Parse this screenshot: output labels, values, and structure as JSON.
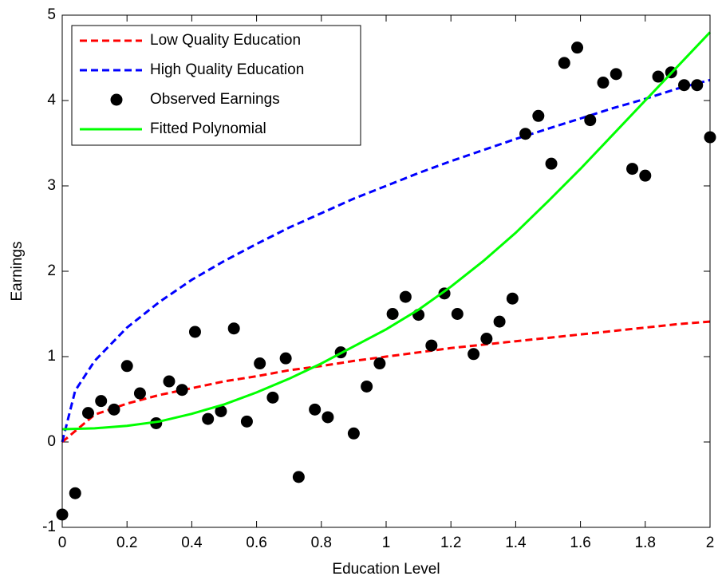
{
  "chart_data": {
    "type": "line",
    "x_label": "Education Level",
    "y_label": "Earnings",
    "xlim": [
      0,
      2
    ],
    "ylim": [
      -1,
      5
    ],
    "xticks": [
      0,
      0.2,
      0.4,
      0.6,
      0.8,
      1,
      1.2,
      1.4,
      1.6,
      1.8,
      2
    ],
    "yticks": [
      -1,
      0,
      1,
      2,
      3,
      4,
      5
    ],
    "grid": false,
    "legend": "upper-left",
    "series": [
      {
        "name": "Low Quality Education",
        "type": "line",
        "line_style": "dashed",
        "color": "#ff0000",
        "x": [
          0,
          0.1,
          0.2,
          0.3,
          0.4,
          0.5,
          0.6,
          0.7,
          0.8,
          0.9,
          1,
          1.1,
          1.2,
          1.3,
          1.4,
          1.5,
          1.6,
          1.7,
          1.8,
          1.9,
          2
        ],
        "values": [
          0,
          0.32,
          0.45,
          0.55,
          0.63,
          0.71,
          0.77,
          0.84,
          0.89,
          0.95,
          1,
          1.05,
          1.1,
          1.14,
          1.18,
          1.22,
          1.26,
          1.3,
          1.34,
          1.38,
          1.41
        ]
      },
      {
        "name": "High Quality Education",
        "type": "line",
        "line_style": "dashed",
        "color": "#0000ff",
        "x": [
          0,
          0.04,
          0.1,
          0.2,
          0.3,
          0.4,
          0.5,
          0.6,
          0.7,
          0.8,
          0.9,
          1,
          1.1,
          1.2,
          1.3,
          1.4,
          1.5,
          1.6,
          1.7,
          1.8,
          1.9,
          2
        ],
        "values": [
          0,
          0.6,
          0.95,
          1.34,
          1.64,
          1.9,
          2.12,
          2.32,
          2.51,
          2.68,
          2.85,
          3,
          3.15,
          3.29,
          3.42,
          3.55,
          3.67,
          3.79,
          3.91,
          4.02,
          4.14,
          4.24
        ]
      },
      {
        "name": "Observed Earnings",
        "type": "scatter",
        "color": "#000000",
        "x": [
          0,
          0.04,
          0.08,
          0.12,
          0.16,
          0.2,
          0.24,
          0.29,
          0.33,
          0.37,
          0.41,
          0.45,
          0.49,
          0.53,
          0.57,
          0.61,
          0.65,
          0.69,
          0.73,
          0.78,
          0.82,
          0.86,
          0.9,
          0.94,
          0.98,
          1.02,
          1.06,
          1.1,
          1.14,
          1.18,
          1.22,
          1.27,
          1.31,
          1.35,
          1.39,
          1.43,
          1.47,
          1.51,
          1.55,
          1.59,
          1.63,
          1.67,
          1.71,
          1.76,
          1.8,
          1.84,
          1.88,
          1.92,
          1.96,
          2
        ],
        "values": [
          -0.85,
          -0.6,
          0.34,
          0.48,
          0.38,
          0.89,
          0.57,
          0.22,
          0.71,
          0.61,
          1.29,
          0.27,
          0.36,
          1.33,
          0.24,
          0.92,
          0.52,
          0.98,
          -0.41,
          0.38,
          0.29,
          1.05,
          0.1,
          0.65,
          0.92,
          1.5,
          1.7,
          1.49,
          1.13,
          1.74,
          1.5,
          1.03,
          1.21,
          1.41,
          1.68,
          3.61,
          3.82,
          3.26,
          4.44,
          4.62,
          3.77,
          4.21,
          4.31,
          3.2,
          3.12,
          4.28,
          4.33,
          4.18,
          4.18,
          3.57
        ]
      },
      {
        "name": "Fitted Polynomial",
        "type": "line",
        "line_style": "solid",
        "color": "#00ff00",
        "x": [
          0,
          0.1,
          0.2,
          0.3,
          0.4,
          0.5,
          0.6,
          0.7,
          0.8,
          0.9,
          1,
          1.1,
          1.2,
          1.3,
          1.4,
          1.5,
          1.6,
          1.7,
          1.8,
          1.9,
          2
        ],
        "values": [
          0.15,
          0.16,
          0.19,
          0.24,
          0.33,
          0.44,
          0.58,
          0.74,
          0.92,
          1.12,
          1.32,
          1.55,
          1.82,
          2.12,
          2.45,
          2.82,
          3.2,
          3.6,
          4.0,
          4.4,
          4.8
        ]
      }
    ]
  }
}
